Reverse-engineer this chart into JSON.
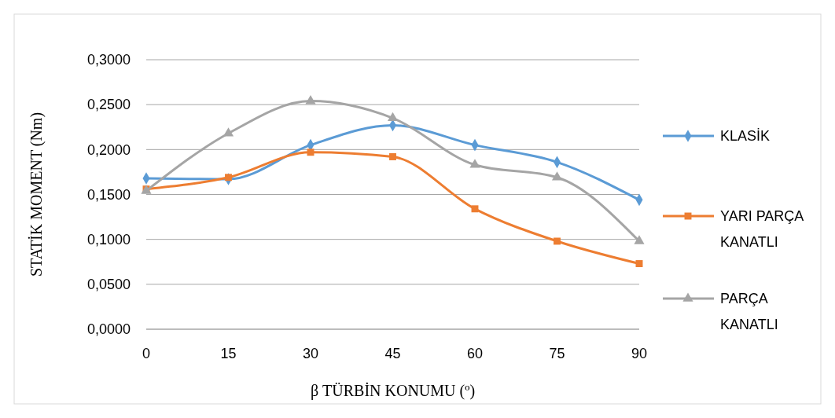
{
  "chart_data": {
    "type": "line",
    "xlabel": "β  TÜRBİN KONUMU (º)",
    "ylabel": "STATİK MOMENT (Nm)",
    "x": [
      0,
      15,
      30,
      45,
      60,
      75,
      90
    ],
    "xlim": [
      0,
      90
    ],
    "xticks": [
      0,
      15,
      30,
      45,
      60,
      75,
      90
    ],
    "ylim": [
      0,
      0.3
    ],
    "yticks": [
      {
        "value": 0,
        "label": "0,0000"
      },
      {
        "value": 0.05,
        "label": "0,0500"
      },
      {
        "value": 0.1,
        "label": "0,1000"
      },
      {
        "value": 0.15,
        "label": "0,1500"
      },
      {
        "value": 0.2,
        "label": "0,2000"
      },
      {
        "value": 0.25,
        "label": "0,2500"
      },
      {
        "value": 0.3,
        "label": "0,3000"
      }
    ],
    "grid": "y",
    "legend": "right",
    "line_style": "solid",
    "series": [
      {
        "name": "KLASİK",
        "color": "#5b9bd5",
        "marker": "diamond",
        "values": [
          0.168,
          0.167,
          0.205,
          0.227,
          0.205,
          0.186,
          0.144
        ]
      },
      {
        "name": "YARI PARÇA KANATLI",
        "color": "#ed7d31",
        "marker": "square",
        "values": [
          0.156,
          0.169,
          0.197,
          0.192,
          0.134,
          0.098,
          0.073
        ]
      },
      {
        "name": "PARÇA KANATLI",
        "color": "#a5a5a5",
        "marker": "triangle",
        "values": [
          0.154,
          0.218,
          0.254,
          0.235,
          0.183,
          0.169,
          0.098
        ]
      }
    ]
  }
}
